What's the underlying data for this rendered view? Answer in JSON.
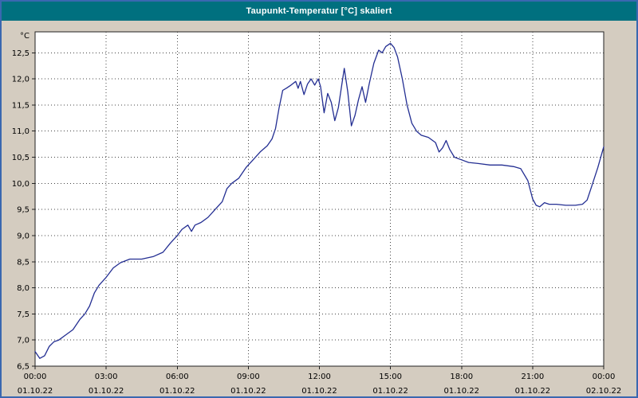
{
  "window": {
    "title": "Taupunkt-Temperatur [°C] skaliert"
  },
  "chart_data": {
    "type": "line",
    "title": "Taupunkt-Temperatur [°C] skaliert",
    "y_unit": "°C",
    "ylim": [
      6.5,
      12.9
    ],
    "grid": "dotted",
    "legend": "none",
    "colors": {
      "page_bg": "#d4ccc0",
      "plot_bg": "#ffffff",
      "titlebar_bg": "#00707f",
      "titlebar_fg": "#ffffff",
      "line": "#232e92",
      "grid": "#444444",
      "frame": "#222222",
      "window_border": "#3a67b0"
    },
    "y_ticks": [
      {
        "value": 6.5,
        "label": "6,5"
      },
      {
        "value": 7.0,
        "label": "7,0"
      },
      {
        "value": 7.5,
        "label": "7,5"
      },
      {
        "value": 8.0,
        "label": "8,0"
      },
      {
        "value": 8.5,
        "label": "8,5"
      },
      {
        "value": 9.0,
        "label": "9,0"
      },
      {
        "value": 9.5,
        "label": "9,5"
      },
      {
        "value": 10.0,
        "label": "10,0"
      },
      {
        "value": 10.5,
        "label": "10,5"
      },
      {
        "value": 11.0,
        "label": "11,0"
      },
      {
        "value": 11.5,
        "label": "11,5"
      },
      {
        "value": 12.0,
        "label": "12,0"
      },
      {
        "value": 12.5,
        "label": "12,5"
      }
    ],
    "x_ticks": [
      {
        "hour": 0,
        "time": "00:00",
        "date": "01.10.22"
      },
      {
        "hour": 3,
        "time": "03:00",
        "date": "01.10.22"
      },
      {
        "hour": 6,
        "time": "06:00",
        "date": "01.10.22"
      },
      {
        "hour": 9,
        "time": "09:00",
        "date": "01.10.22"
      },
      {
        "hour": 12,
        "time": "12:00",
        "date": "01.10.22"
      },
      {
        "hour": 15,
        "time": "15:00",
        "date": "01.10.22"
      },
      {
        "hour": 18,
        "time": "18:00",
        "date": "01.10.22"
      },
      {
        "hour": 21,
        "time": "21:00",
        "date": "01.10.22"
      },
      {
        "hour": 24,
        "time": "00:00",
        "date": "02.10.22"
      }
    ],
    "series": [
      {
        "name": "Taupunkt-Temperatur",
        "color": "#232e92",
        "points": [
          [
            0,
            6.78
          ],
          [
            0.2,
            6.65
          ],
          [
            0.4,
            6.7
          ],
          [
            0.6,
            6.88
          ],
          [
            0.8,
            6.97
          ],
          [
            1,
            7.0
          ],
          [
            1.3,
            7.1
          ],
          [
            1.6,
            7.2
          ],
          [
            1.9,
            7.4
          ],
          [
            2.1,
            7.5
          ],
          [
            2.3,
            7.65
          ],
          [
            2.5,
            7.9
          ],
          [
            2.7,
            8.05
          ],
          [
            3,
            8.2
          ],
          [
            3.3,
            8.38
          ],
          [
            3.6,
            8.48
          ],
          [
            4,
            8.55
          ],
          [
            4.5,
            8.55
          ],
          [
            5,
            8.6
          ],
          [
            5.4,
            8.68
          ],
          [
            5.7,
            8.85
          ],
          [
            6,
            9.0
          ],
          [
            6.2,
            9.12
          ],
          [
            6.45,
            9.2
          ],
          [
            6.6,
            9.08
          ],
          [
            6.75,
            9.2
          ],
          [
            7,
            9.25
          ],
          [
            7.3,
            9.35
          ],
          [
            7.6,
            9.5
          ],
          [
            7.9,
            9.65
          ],
          [
            8.1,
            9.9
          ],
          [
            8.3,
            10.0
          ],
          [
            8.6,
            10.1
          ],
          [
            8.9,
            10.3
          ],
          [
            9.2,
            10.45
          ],
          [
            9.5,
            10.6
          ],
          [
            9.8,
            10.72
          ],
          [
            10,
            10.85
          ],
          [
            10.15,
            11.05
          ],
          [
            10.3,
            11.45
          ],
          [
            10.45,
            11.78
          ],
          [
            10.6,
            11.82
          ],
          [
            10.8,
            11.88
          ],
          [
            11,
            11.95
          ],
          [
            11.1,
            11.82
          ],
          [
            11.2,
            11.95
          ],
          [
            11.35,
            11.7
          ],
          [
            11.5,
            11.9
          ],
          [
            11.65,
            12.0
          ],
          [
            11.8,
            11.88
          ],
          [
            11.95,
            12.0
          ],
          [
            12.05,
            11.85
          ],
          [
            12.2,
            11.35
          ],
          [
            12.35,
            11.72
          ],
          [
            12.5,
            11.55
          ],
          [
            12.65,
            11.2
          ],
          [
            12.8,
            11.45
          ],
          [
            12.95,
            11.9
          ],
          [
            13.05,
            12.2
          ],
          [
            13.2,
            11.75
          ],
          [
            13.35,
            11.1
          ],
          [
            13.5,
            11.3
          ],
          [
            13.65,
            11.6
          ],
          [
            13.8,
            11.85
          ],
          [
            13.95,
            11.55
          ],
          [
            14.1,
            11.9
          ],
          [
            14.3,
            12.3
          ],
          [
            14.5,
            12.55
          ],
          [
            14.65,
            12.5
          ],
          [
            14.8,
            12.62
          ],
          [
            15,
            12.68
          ],
          [
            15.15,
            12.6
          ],
          [
            15.3,
            12.42
          ],
          [
            15.5,
            12.0
          ],
          [
            15.7,
            11.5
          ],
          [
            15.9,
            11.15
          ],
          [
            16.1,
            11.0
          ],
          [
            16.3,
            10.92
          ],
          [
            16.6,
            10.88
          ],
          [
            16.9,
            10.78
          ],
          [
            17.05,
            10.6
          ],
          [
            17.2,
            10.68
          ],
          [
            17.35,
            10.82
          ],
          [
            17.5,
            10.65
          ],
          [
            17.7,
            10.5
          ],
          [
            18,
            10.45
          ],
          [
            18.3,
            10.4
          ],
          [
            18.7,
            10.38
          ],
          [
            19.2,
            10.35
          ],
          [
            19.7,
            10.35
          ],
          [
            20.2,
            10.32
          ],
          [
            20.5,
            10.28
          ],
          [
            20.8,
            10.05
          ],
          [
            21,
            9.7
          ],
          [
            21.15,
            9.58
          ],
          [
            21.3,
            9.55
          ],
          [
            21.5,
            9.63
          ],
          [
            21.7,
            9.6
          ],
          [
            22,
            9.6
          ],
          [
            22.4,
            9.58
          ],
          [
            22.8,
            9.58
          ],
          [
            23.1,
            9.6
          ],
          [
            23.3,
            9.68
          ],
          [
            23.5,
            9.95
          ],
          [
            23.75,
            10.3
          ],
          [
            24,
            10.7
          ]
        ]
      }
    ]
  }
}
